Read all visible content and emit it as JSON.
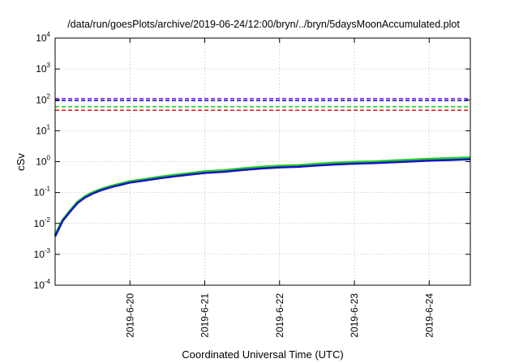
{
  "chart_data": {
    "type": "line",
    "title": "/data/run/goesPlots/archive/2019-06-24/12:00/bryn/../bryn/5daysMoonAccumulated.plot",
    "xlabel": "Coordinated Universal Time (UTC)",
    "ylabel": "cSv",
    "yscale": "log",
    "ylim": [
      0.0001,
      10000
    ],
    "xlim": [
      0,
      5.55
    ],
    "grid": true,
    "x_ticks": [
      {
        "x": 1,
        "label": "2019-6-20"
      },
      {
        "x": 2,
        "label": "2019-6-21"
      },
      {
        "x": 3,
        "label": "2019-6-22"
      },
      {
        "x": 4,
        "label": "2019-6-23"
      },
      {
        "x": 5,
        "label": "2019-6-24"
      }
    ],
    "y_ticks": [
      {
        "value": 0.0001,
        "base": "10",
        "exp": "-4"
      },
      {
        "value": 0.001,
        "base": "10",
        "exp": "-3"
      },
      {
        "value": 0.01,
        "base": "10",
        "exp": "-2"
      },
      {
        "value": 0.1,
        "base": "10",
        "exp": "-1"
      },
      {
        "value": 1,
        "base": "10",
        "exp": "0"
      },
      {
        "value": 10,
        "base": "10",
        "exp": "1"
      },
      {
        "value": 100,
        "base": "10",
        "exp": "2"
      },
      {
        "value": 1000,
        "base": "10",
        "exp": "3"
      },
      {
        "value": 10000,
        "base": "10",
        "exp": "4"
      }
    ],
    "thresholds": [
      {
        "value": 110,
        "color": "#8a2be2"
      },
      {
        "value": 95,
        "color": "#1e1ecc"
      },
      {
        "value": 60,
        "color": "#22cc22"
      },
      {
        "value": 46,
        "color": "#e02020"
      }
    ],
    "series": [
      {
        "color": "#22cc22",
        "width": 3,
        "x": [
          0,
          0.1,
          0.2,
          0.3,
          0.4,
          0.5,
          0.6,
          0.7,
          0.8,
          0.9,
          1.0,
          1.2,
          1.4,
          1.6,
          1.8,
          2.0,
          2.25,
          2.5,
          2.75,
          3.0,
          3.25,
          3.5,
          3.75,
          4.0,
          4.25,
          4.5,
          4.75,
          5.0,
          5.25,
          5.55
        ],
        "values": [
          0.0042,
          0.013,
          0.026,
          0.05,
          0.075,
          0.1,
          0.125,
          0.15,
          0.175,
          0.2,
          0.23,
          0.27,
          0.32,
          0.37,
          0.42,
          0.48,
          0.52,
          0.6,
          0.67,
          0.73,
          0.76,
          0.84,
          0.91,
          0.97,
          1.0,
          1.07,
          1.14,
          1.22,
          1.27,
          1.35
        ]
      },
      {
        "color": "#1414c8",
        "width": 2.5,
        "x": [
          0,
          0.1,
          0.2,
          0.3,
          0.4,
          0.5,
          0.6,
          0.7,
          0.8,
          0.9,
          1.0,
          1.2,
          1.4,
          1.6,
          1.8,
          2.0,
          2.25,
          2.5,
          2.75,
          3.0,
          3.25,
          3.5,
          3.75,
          4.0,
          4.25,
          4.5,
          4.75,
          5.0,
          5.25,
          5.55
        ],
        "values": [
          0.0038,
          0.012,
          0.024,
          0.046,
          0.069,
          0.092,
          0.115,
          0.138,
          0.16,
          0.183,
          0.21,
          0.245,
          0.29,
          0.335,
          0.38,
          0.43,
          0.465,
          0.535,
          0.6,
          0.65,
          0.68,
          0.75,
          0.81,
          0.86,
          0.89,
          0.95,
          1.01,
          1.08,
          1.12,
          1.19
        ]
      }
    ]
  }
}
